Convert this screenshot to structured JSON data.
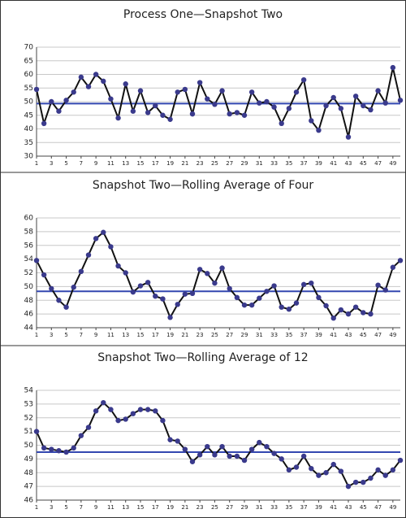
{
  "chart_data": [
    {
      "type": "line",
      "title": "Process One—Snapshot Two",
      "x": [
        1,
        2,
        3,
        4,
        5,
        6,
        7,
        8,
        9,
        10,
        11,
        12,
        13,
        14,
        15,
        16,
        17,
        18,
        19,
        20,
        21,
        22,
        23,
        24,
        25,
        26,
        27,
        28,
        29,
        30,
        31,
        32,
        33,
        34,
        35,
        36,
        37,
        38,
        39,
        40,
        41,
        42,
        43,
        44,
        45,
        46,
        47,
        48,
        49,
        50
      ],
      "values": [
        54.5,
        42,
        50,
        46.5,
        50.5,
        53.5,
        59,
        55.5,
        60,
        57.5,
        51,
        44,
        56.5,
        46.5,
        54,
        46,
        48.5,
        45,
        43.5,
        53.5,
        54.5,
        45.5,
        57,
        51,
        49,
        54,
        45.5,
        46,
        45,
        53.5,
        49.5,
        50,
        48,
        42,
        47.5,
        53.5,
        58,
        43,
        39.5,
        48.5,
        51.5,
        47.5,
        37,
        52,
        48.5,
        47,
        54,
        49.5,
        62.5,
        50.5
      ],
      "color": "#111111",
      "marker_color": "#3a3a8c",
      "mean_line": 49.3,
      "mean_color": "#3347b0",
      "xlim": [
        1,
        50
      ],
      "xticks": [
        1,
        3,
        5,
        7,
        9,
        11,
        13,
        15,
        17,
        19,
        21,
        23,
        25,
        27,
        29,
        31,
        33,
        35,
        37,
        39,
        41,
        43,
        45,
        47,
        49
      ],
      "ylim": [
        30,
        70
      ],
      "yticks": [
        30,
        35,
        40,
        45,
        50,
        55,
        60,
        65,
        70
      ],
      "grid": true
    },
    {
      "type": "line",
      "title": "Snapshot Two—Rolling Average of Four",
      "x": [
        1,
        2,
        3,
        4,
        5,
        6,
        7,
        8,
        9,
        10,
        11,
        12,
        13,
        14,
        15,
        16,
        17,
        18,
        19,
        20,
        21,
        22,
        23,
        24,
        25,
        26,
        27,
        28,
        29,
        30,
        31,
        32,
        33,
        34,
        35,
        36,
        37,
        38,
        39,
        40,
        41,
        42,
        43,
        44,
        45,
        46,
        47,
        48,
        49,
        50
      ],
      "values": [
        53.8,
        51.7,
        49.7,
        48,
        47,
        49.9,
        52.2,
        54.6,
        57,
        57.9,
        55.8,
        53,
        52,
        49.2,
        50.1,
        50.6,
        48.6,
        48.2,
        45.5,
        47.4,
        48.9,
        49,
        52.5,
        51.9,
        50.5,
        52.7,
        49.7,
        48.4,
        47.3,
        47.3,
        48.3,
        49.3,
        50.1,
        47,
        46.7,
        47.6,
        50.3,
        50.5,
        48.4,
        47.2,
        45.4,
        46.6,
        46,
        47,
        46.2,
        46,
        50.2,
        49.5,
        52.8,
        53.8
      ],
      "color": "#111111",
      "marker_color": "#3a3a8c",
      "mean_line": 49.3,
      "mean_color": "#3347b0",
      "xlim": [
        1,
        50
      ],
      "xticks": [
        1,
        3,
        5,
        7,
        9,
        11,
        13,
        15,
        17,
        19,
        21,
        23,
        25,
        27,
        29,
        31,
        33,
        35,
        37,
        39,
        41,
        43,
        45,
        47,
        49
      ],
      "ylim": [
        44,
        60
      ],
      "yticks": [
        44,
        46,
        48,
        50,
        52,
        54,
        56,
        58,
        60
      ],
      "grid": true
    },
    {
      "type": "line",
      "title": "Snapshot Two—Rolling Average of 12",
      "x": [
        1,
        2,
        3,
        4,
        5,
        6,
        7,
        8,
        9,
        10,
        11,
        12,
        13,
        14,
        15,
        16,
        17,
        18,
        19,
        20,
        21,
        22,
        23,
        24,
        25,
        26,
        27,
        28,
        29,
        30,
        31,
        32,
        33,
        34,
        35,
        36,
        37,
        38,
        39,
        40,
        41,
        42,
        43,
        44,
        45,
        46,
        47,
        48,
        49,
        50
      ],
      "values": [
        51,
        49.8,
        49.7,
        49.6,
        49.5,
        49.8,
        50.7,
        51.3,
        52.5,
        53.1,
        52.6,
        51.8,
        51.9,
        52.3,
        52.6,
        52.6,
        52.5,
        51.8,
        50.4,
        50.3,
        49.7,
        48.8,
        49.3,
        49.9,
        49.3,
        49.9,
        49.2,
        49.2,
        48.9,
        49.7,
        50.2,
        49.9,
        49.4,
        49,
        48.2,
        48.4,
        49.2,
        48.3,
        47.8,
        48,
        48.6,
        48.1,
        47,
        47.3,
        47.3,
        47.6,
        48.2,
        47.8,
        48.2,
        48.9
      ],
      "color": "#111111",
      "marker_color": "#3a3a8c",
      "mean_line": 49.5,
      "mean_color": "#3347b0",
      "xlim": [
        1,
        50
      ],
      "xticks": [
        1,
        3,
        5,
        7,
        9,
        11,
        13,
        15,
        17,
        19,
        21,
        23,
        25,
        27,
        29,
        31,
        33,
        35,
        37,
        39,
        41,
        43,
        45,
        47,
        49
      ],
      "ylim": [
        46,
        54
      ],
      "yticks": [
        46,
        47,
        48,
        49,
        50,
        51,
        52,
        53,
        54
      ],
      "grid": true
    }
  ]
}
